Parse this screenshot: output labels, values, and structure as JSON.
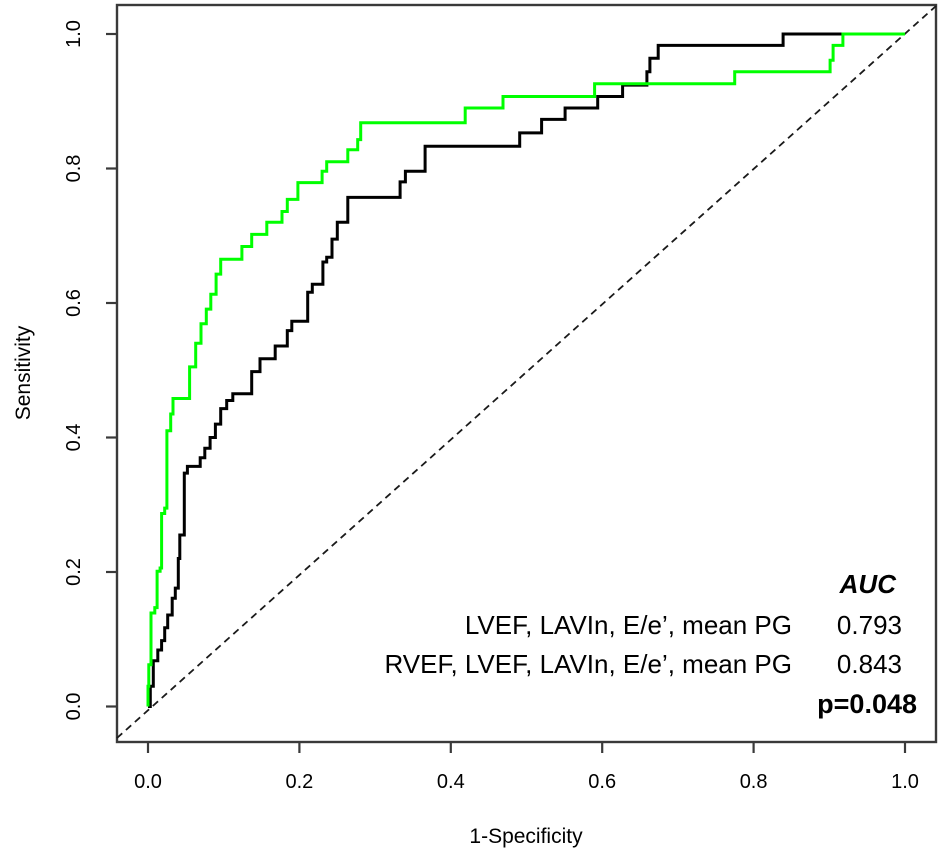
{
  "figure": {
    "type": "ROC curve plot",
    "x_axis_title": "1-Specificity",
    "y_axis_title": "Sensitivity",
    "x_ticks": [
      "0.0",
      "0.2",
      "0.4",
      "0.6",
      "0.8",
      "1.0"
    ],
    "y_ticks": [
      "0.0",
      "0.2",
      "0.4",
      "0.6",
      "0.8",
      "1.0"
    ]
  },
  "legend": {
    "header": "AUC",
    "rows": [
      {
        "label": "LVEF, LAVIn, E/e’, mean PG",
        "auc": "0.793",
        "color": "#000000"
      },
      {
        "label": "RVEF, LVEF, LAVIn, E/e’, mean PG",
        "auc": "0.843",
        "color": "#00A651"
      }
    ],
    "p_value": "p=0.048",
    "p_color": "#FF0000"
  },
  "colors": {
    "curve_black": "#000000",
    "curve_green": "#00FF00",
    "diagonal": "#1a1a1a",
    "axis": "#3a3a3a"
  },
  "chart_data": {
    "type": "line",
    "subtype": "roc-step-curves",
    "title": "",
    "xlabel": "1-Specificity",
    "ylabel": "Sensitivity",
    "xlim": [
      0,
      1
    ],
    "ylim": [
      0,
      1
    ],
    "x_tick_values": [
      0.0,
      0.2,
      0.4,
      0.6,
      0.8,
      1.0
    ],
    "y_tick_values": [
      0.0,
      0.2,
      0.4,
      0.6,
      0.8,
      1.0
    ],
    "grid": false,
    "legend_position": "lower right",
    "reference_line": {
      "style": "dashed",
      "from": [
        0,
        0
      ],
      "to": [
        1,
        1
      ]
    },
    "series": [
      {
        "name": "LVEF, LAVIn, E/e’, mean PG",
        "auc": 0.793,
        "color": "#000000",
        "points": [
          [
            0.0,
            0.0
          ],
          [
            0.003,
            0.0
          ],
          [
            0.003,
            0.03
          ],
          [
            0.007,
            0.03
          ],
          [
            0.007,
            0.068
          ],
          [
            0.013,
            0.068
          ],
          [
            0.013,
            0.084
          ],
          [
            0.018,
            0.084
          ],
          [
            0.018,
            0.098
          ],
          [
            0.022,
            0.098
          ],
          [
            0.022,
            0.117
          ],
          [
            0.026,
            0.117
          ],
          [
            0.026,
            0.136
          ],
          [
            0.032,
            0.136
          ],
          [
            0.032,
            0.161
          ],
          [
            0.036,
            0.161
          ],
          [
            0.036,
            0.176
          ],
          [
            0.04,
            0.176
          ],
          [
            0.04,
            0.22
          ],
          [
            0.042,
            0.22
          ],
          [
            0.042,
            0.255
          ],
          [
            0.048,
            0.255
          ],
          [
            0.048,
            0.347
          ],
          [
            0.052,
            0.347
          ],
          [
            0.052,
            0.357
          ],
          [
            0.069,
            0.357
          ],
          [
            0.069,
            0.37
          ],
          [
            0.075,
            0.37
          ],
          [
            0.075,
            0.384
          ],
          [
            0.082,
            0.384
          ],
          [
            0.082,
            0.4
          ],
          [
            0.089,
            0.4
          ],
          [
            0.089,
            0.42
          ],
          [
            0.096,
            0.42
          ],
          [
            0.096,
            0.443
          ],
          [
            0.104,
            0.443
          ],
          [
            0.104,
            0.455
          ],
          [
            0.112,
            0.455
          ],
          [
            0.112,
            0.465
          ],
          [
            0.137,
            0.465
          ],
          [
            0.137,
            0.498
          ],
          [
            0.148,
            0.498
          ],
          [
            0.148,
            0.517
          ],
          [
            0.168,
            0.517
          ],
          [
            0.168,
            0.536
          ],
          [
            0.184,
            0.536
          ],
          [
            0.184,
            0.559
          ],
          [
            0.19,
            0.559
          ],
          [
            0.19,
            0.573
          ],
          [
            0.211,
            0.573
          ],
          [
            0.211,
            0.616
          ],
          [
            0.217,
            0.616
          ],
          [
            0.217,
            0.628
          ],
          [
            0.231,
            0.628
          ],
          [
            0.231,
            0.661
          ],
          [
            0.236,
            0.661
          ],
          [
            0.236,
            0.668
          ],
          [
            0.243,
            0.668
          ],
          [
            0.243,
            0.695
          ],
          [
            0.25,
            0.695
          ],
          [
            0.25,
            0.72
          ],
          [
            0.264,
            0.72
          ],
          [
            0.264,
            0.757
          ],
          [
            0.333,
            0.757
          ],
          [
            0.333,
            0.78
          ],
          [
            0.34,
            0.78
          ],
          [
            0.34,
            0.796
          ],
          [
            0.366,
            0.796
          ],
          [
            0.366,
            0.833
          ],
          [
            0.491,
            0.833
          ],
          [
            0.491,
            0.853
          ],
          [
            0.52,
            0.853
          ],
          [
            0.52,
            0.873
          ],
          [
            0.551,
            0.873
          ],
          [
            0.551,
            0.89
          ],
          [
            0.594,
            0.89
          ],
          [
            0.594,
            0.907
          ],
          [
            0.627,
            0.907
          ],
          [
            0.627,
            0.924
          ],
          [
            0.659,
            0.924
          ],
          [
            0.659,
            0.944
          ],
          [
            0.663,
            0.944
          ],
          [
            0.663,
            0.964
          ],
          [
            0.674,
            0.964
          ],
          [
            0.674,
            0.983
          ],
          [
            0.839,
            0.983
          ],
          [
            0.839,
            1.0
          ],
          [
            1.0,
            1.0
          ]
        ]
      },
      {
        "name": "RVEF, LVEF, LAVIn, E/e’, mean PG",
        "auc": 0.843,
        "color": "#00FF00",
        "points": [
          [
            0.0,
            0.0
          ],
          [
            0.0,
            0.03
          ],
          [
            0.001,
            0.03
          ],
          [
            0.001,
            0.062
          ],
          [
            0.004,
            0.062
          ],
          [
            0.004,
            0.139
          ],
          [
            0.009,
            0.139
          ],
          [
            0.009,
            0.147
          ],
          [
            0.012,
            0.147
          ],
          [
            0.012,
            0.201
          ],
          [
            0.016,
            0.201
          ],
          [
            0.016,
            0.206
          ],
          [
            0.018,
            0.206
          ],
          [
            0.018,
            0.287
          ],
          [
            0.022,
            0.287
          ],
          [
            0.022,
            0.295
          ],
          [
            0.025,
            0.295
          ],
          [
            0.025,
            0.41
          ],
          [
            0.03,
            0.41
          ],
          [
            0.03,
            0.435
          ],
          [
            0.033,
            0.435
          ],
          [
            0.033,
            0.458
          ],
          [
            0.055,
            0.458
          ],
          [
            0.055,
            0.505
          ],
          [
            0.063,
            0.505
          ],
          [
            0.063,
            0.54
          ],
          [
            0.07,
            0.54
          ],
          [
            0.07,
            0.569
          ],
          [
            0.077,
            0.569
          ],
          [
            0.077,
            0.591
          ],
          [
            0.083,
            0.591
          ],
          [
            0.083,
            0.613
          ],
          [
            0.09,
            0.613
          ],
          [
            0.09,
            0.643
          ],
          [
            0.096,
            0.643
          ],
          [
            0.096,
            0.665
          ],
          [
            0.124,
            0.665
          ],
          [
            0.124,
            0.684
          ],
          [
            0.137,
            0.684
          ],
          [
            0.137,
            0.702
          ],
          [
            0.157,
            0.702
          ],
          [
            0.157,
            0.72
          ],
          [
            0.177,
            0.72
          ],
          [
            0.177,
            0.736
          ],
          [
            0.184,
            0.736
          ],
          [
            0.184,
            0.754
          ],
          [
            0.198,
            0.754
          ],
          [
            0.198,
            0.779
          ],
          [
            0.23,
            0.779
          ],
          [
            0.23,
            0.796
          ],
          [
            0.236,
            0.796
          ],
          [
            0.236,
            0.81
          ],
          [
            0.264,
            0.81
          ],
          [
            0.264,
            0.828
          ],
          [
            0.277,
            0.828
          ],
          [
            0.277,
            0.843
          ],
          [
            0.281,
            0.843
          ],
          [
            0.281,
            0.868
          ],
          [
            0.419,
            0.868
          ],
          [
            0.419,
            0.89
          ],
          [
            0.469,
            0.89
          ],
          [
            0.469,
            0.907
          ],
          [
            0.59,
            0.907
          ],
          [
            0.59,
            0.926
          ],
          [
            0.775,
            0.926
          ],
          [
            0.775,
            0.944
          ],
          [
            0.901,
            0.944
          ],
          [
            0.901,
            0.961
          ],
          [
            0.905,
            0.961
          ],
          [
            0.905,
            0.983
          ],
          [
            0.918,
            0.983
          ],
          [
            0.918,
            1.0
          ],
          [
            1.0,
            1.0
          ]
        ]
      }
    ],
    "p_value_between_curves": 0.048
  }
}
